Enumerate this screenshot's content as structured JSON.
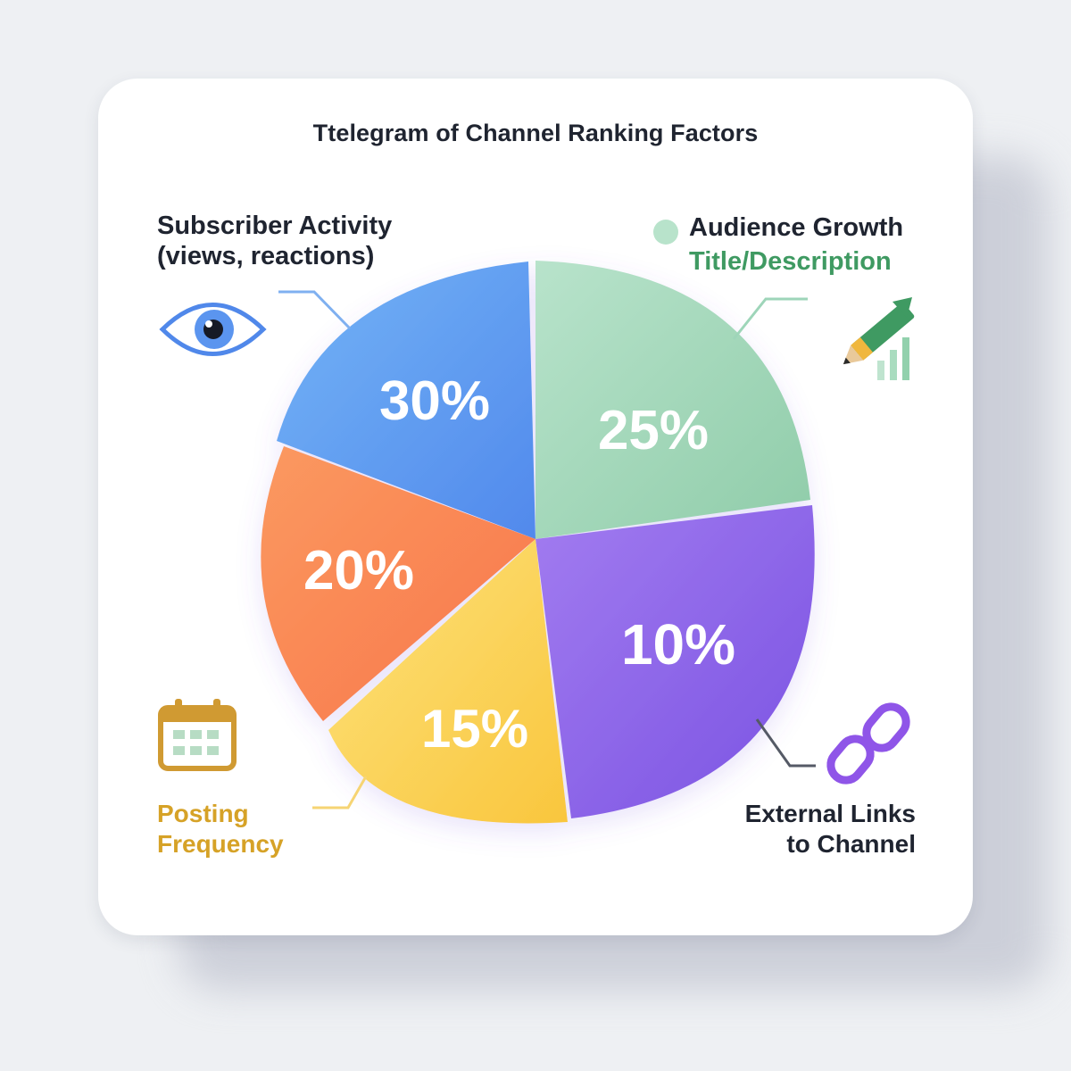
{
  "chart_data": {
    "type": "pie",
    "title": "Ttelegram of Channel Ranking Factors",
    "slices": [
      {
        "label_lines": [
          "Subscriber Activity",
          "(views, reactions)"
        ],
        "value": 30,
        "value_label": "30%",
        "color": "#5f9df1",
        "icon": "eye-icon"
      },
      {
        "label_lines": [
          "Audience Growth"
        ],
        "value": 25,
        "value_label": "25%",
        "color": "#9ed5b9",
        "icon": "growth-pencil-icon"
      },
      {
        "label_lines": [
          "External Links",
          "to Channel"
        ],
        "value": 10,
        "value_label": "10%",
        "color": "#8c63ea",
        "icon": "chain-link-icon"
      },
      {
        "label_lines": [
          "Posting",
          "Frequency"
        ],
        "value": 15,
        "value_label": "15%",
        "color": "#fcd25a",
        "icon": "calendar-icon"
      },
      {
        "label_lines": [],
        "value": 20,
        "value_label": "20%",
        "color": "#fb8a56"
      }
    ],
    "extra_labels": {
      "audience_sub": "Title/Description"
    },
    "legend_marker_color": "#b8e3cb"
  }
}
